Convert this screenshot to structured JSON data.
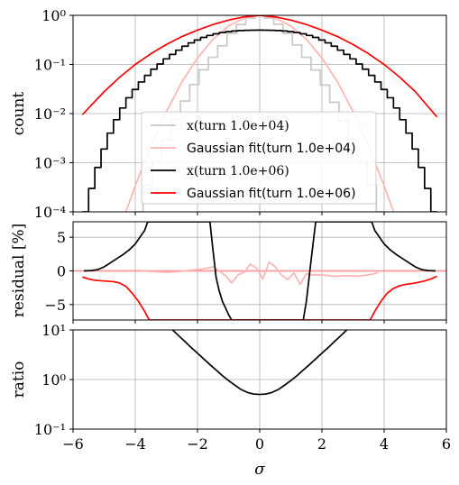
{
  "chart_data": [
    {
      "panel": "top",
      "type": "line",
      "ylabel": "count",
      "xlim": [
        -6,
        6
      ],
      "ylim": [
        0.0001,
        1
      ],
      "yscale": "log",
      "grid": true,
      "yticks": [
        {
          "value": 0.0001,
          "label": "10⁻⁴"
        },
        {
          "value": 0.001,
          "label": "10⁻³"
        },
        {
          "value": 0.01,
          "label": "10⁻²"
        },
        {
          "value": 0.1,
          "label": "10⁻¹"
        },
        {
          "value": 1,
          "label": "10⁰"
        }
      ],
      "legend": {
        "placement": "lower-center",
        "entries": [
          {
            "label": "x(turn 1.0e+04)",
            "color": "#c8c8c8"
          },
          {
            "label": "Gaussian fit(turn 1.0e+04)",
            "color": "#ffb3b3"
          },
          {
            "label": "x(turn 1.0e+06)",
            "color": "#000000"
          },
          {
            "label": "Gaussian fit(turn 1.0e+06)",
            "color": "#ff0000"
          }
        ]
      },
      "series": [
        {
          "name": "x(turn 1.0e+04)",
          "style": "step",
          "color": "#c8c8c8",
          "x": [
            -3.9,
            -3.6,
            -3.3,
            -3.0,
            -2.7,
            -2.4,
            -2.1,
            -1.8,
            -1.5,
            -1.2,
            -0.9,
            -0.6,
            -0.3,
            0.0,
            0.3,
            0.6,
            0.9,
            1.2,
            1.5,
            1.8,
            2.1,
            2.4,
            2.7,
            3.0,
            3.3,
            3.6,
            3.9
          ],
          "y": [
            0.0001,
            0.00035,
            0.0011,
            0.0029,
            0.0075,
            0.018,
            0.039,
            0.078,
            0.14,
            0.24,
            0.43,
            0.65,
            0.88,
            1.0,
            0.88,
            0.66,
            0.43,
            0.25,
            0.14,
            0.077,
            0.038,
            0.017,
            0.0072,
            0.0029,
            0.0011,
            0.00035,
            0.0001
          ]
        },
        {
          "name": "Gaussian fit(turn 1.0e+04)",
          "style": "line",
          "color": "#ffb3b3",
          "x": [
            -4.3,
            -4,
            -3.5,
            -3,
            -2.5,
            -2,
            -1.5,
            -1,
            -0.5,
            0,
            0.5,
            1,
            1.5,
            2,
            2.5,
            3,
            3.5,
            4,
            4.3
          ],
          "y": [
            0.0001,
            0.00034,
            0.0022,
            0.011,
            0.044,
            0.135,
            0.325,
            0.61,
            0.88,
            1.0,
            0.88,
            0.61,
            0.325,
            0.135,
            0.044,
            0.011,
            0.0022,
            0.00034,
            0.0001
          ]
        },
        {
          "name": "x(turn 1.0e+06)",
          "style": "step",
          "color": "#000000",
          "x": [
            -5.6,
            -5.4,
            -5.2,
            -5.0,
            -4.8,
            -4.6,
            -4.4,
            -4.2,
            -4.0,
            -3.8,
            -3.6,
            -3.4,
            -3.2,
            -3.0,
            -2.8,
            -2.6,
            -2.4,
            -2.2,
            -2.0,
            -1.8,
            -1.6,
            -1.4,
            -1.2,
            -1.0,
            -0.8,
            -0.6,
            -0.4,
            -0.2,
            0.0,
            0.2,
            0.4,
            0.6,
            0.8,
            1.0,
            1.2,
            1.4,
            1.6,
            1.8,
            2.0,
            2.2,
            2.4,
            2.6,
            2.8,
            3.0,
            3.2,
            3.4,
            3.6,
            3.8,
            4.0,
            4.2,
            4.4,
            4.6,
            4.8,
            5.0,
            5.2,
            5.4,
            5.6
          ],
          "y": [
            0.0001,
            0.0003,
            0.0008,
            0.0019,
            0.004,
            0.0075,
            0.013,
            0.021,
            0.031,
            0.044,
            0.06,
            0.08,
            0.102,
            0.13,
            0.16,
            0.195,
            0.235,
            0.275,
            0.315,
            0.355,
            0.39,
            0.42,
            0.445,
            0.465,
            0.48,
            0.49,
            0.495,
            0.498,
            0.5,
            0.498,
            0.495,
            0.49,
            0.48,
            0.465,
            0.445,
            0.42,
            0.39,
            0.355,
            0.315,
            0.275,
            0.235,
            0.195,
            0.16,
            0.13,
            0.102,
            0.08,
            0.06,
            0.044,
            0.031,
            0.021,
            0.013,
            0.0075,
            0.004,
            0.0019,
            0.0008,
            0.0003,
            0.0001
          ]
        },
        {
          "name": "Gaussian fit(turn 1.0e+06)",
          "style": "line",
          "color": "#ff0000",
          "x": [
            -5.7,
            -5,
            -4.5,
            -4,
            -3.5,
            -3,
            -2.5,
            -2,
            -1.5,
            -1,
            -0.5,
            0,
            0.5,
            1,
            1.5,
            2,
            2.5,
            3,
            3.5,
            4,
            4.5,
            5,
            5.7
          ],
          "y": [
            0.0095,
            0.028,
            0.055,
            0.1,
            0.165,
            0.255,
            0.37,
            0.5,
            0.65,
            0.8,
            0.93,
            1.0,
            0.93,
            0.8,
            0.65,
            0.5,
            0.37,
            0.255,
            0.165,
            0.1,
            0.055,
            0.028,
            0.0085
          ]
        }
      ]
    },
    {
      "panel": "middle",
      "type": "line",
      "ylabel": "residual [%]",
      "xlim": [
        -6,
        6
      ],
      "ylim": [
        -7.3,
        7.3
      ],
      "grid": true,
      "yticks": [
        {
          "value": -5,
          "label": "−5"
        },
        {
          "value": 0,
          "label": "0"
        },
        {
          "value": 5,
          "label": "5"
        }
      ],
      "series": [
        {
          "name": "Gaussian fit(turn 1.0e+04)",
          "color": "#ff9999",
          "style": "flat",
          "x": [
            -6,
            6
          ],
          "y": [
            0,
            0
          ]
        },
        {
          "name": "x(turn 1.0e+04)",
          "color": "#ffb3b3",
          "style": "line",
          "x": [
            -3.8,
            -3.4,
            -3.0,
            -2.6,
            -2.2,
            -1.8,
            -1.5,
            -1.3,
            -1.1,
            -0.9,
            -0.7,
            -0.5,
            -0.3,
            -0.1,
            0.1,
            0.3,
            0.5,
            0.7,
            0.9,
            1.1,
            1.3,
            1.5,
            1.7,
            2.0,
            2.4,
            2.8,
            3.2,
            3.6,
            3.8
          ],
          "y": [
            0.0,
            -0.1,
            -0.2,
            -0.1,
            0.1,
            0.3,
            0.6,
            0.0,
            -0.7,
            -1.8,
            -0.6,
            -0.2,
            1.0,
            0.4,
            -1.2,
            1.3,
            0.6,
            -0.6,
            -1.3,
            -0.3,
            -2.0,
            -0.4,
            -0.6,
            -0.6,
            -0.8,
            -0.7,
            -0.8,
            -0.5,
            -0.3
          ]
        },
        {
          "name": "x(turn 1.0e+06)",
          "color": "#000000",
          "style": "line",
          "x": [
            -5.65,
            -5.4,
            -5.2,
            -5.0,
            -4.8,
            -4.6,
            -4.4,
            -4.2,
            -4.0,
            -3.85,
            -3.7,
            -3.6,
            -1.6,
            -1.5,
            -1.4,
            -1.3,
            -1.2,
            -1.1,
            -1.0,
            -0.9,
            1.4,
            1.5,
            1.6,
            1.7,
            1.8,
            3.6,
            3.7,
            3.85,
            4.0,
            4.2,
            4.4,
            4.6,
            4.8,
            5.0,
            5.2,
            5.4,
            5.65
          ],
          "y": [
            0.0,
            0.05,
            0.2,
            0.6,
            1.2,
            1.8,
            2.4,
            3.1,
            4.0,
            5.0,
            6.0,
            7.3,
            7.3,
            3.0,
            -1.0,
            -3.0,
            -4.5,
            -5.5,
            -6.5,
            -7.3,
            -7.3,
            -4.5,
            -0.5,
            3.5,
            7.3,
            7.3,
            6.0,
            5.0,
            4.0,
            3.1,
            2.4,
            1.8,
            1.2,
            0.6,
            0.2,
            0.05,
            0.0
          ]
        },
        {
          "name": "Gaussian fit(turn 1.0e+06)",
          "color": "#ff0000",
          "style": "line",
          "x": [
            -5.7,
            -5.5,
            -5.3,
            -5.0,
            -4.7,
            -4.5,
            -4.3,
            -4.1,
            -3.9,
            -3.7,
            -3.55,
            3.55,
            3.7,
            3.9,
            4.1,
            4.3,
            4.5,
            4.7,
            5.0,
            5.3,
            5.5,
            5.7
          ],
          "y": [
            -0.9,
            -1.2,
            -1.4,
            -1.5,
            -1.6,
            -1.8,
            -2.3,
            -3.3,
            -4.5,
            -6.0,
            -7.3,
            -7.3,
            -6.0,
            -4.5,
            -3.3,
            -2.6,
            -2.2,
            -2.0,
            -1.8,
            -1.5,
            -1.2,
            -0.8
          ]
        }
      ]
    },
    {
      "panel": "bottom",
      "type": "line",
      "ylabel": "ratio",
      "xlabel": "σ",
      "xlim": [
        -6,
        6
      ],
      "ylim": [
        0.1,
        10
      ],
      "yscale": "log",
      "grid": true,
      "xticks": [
        {
          "value": -6,
          "label": "−6"
        },
        {
          "value": -4,
          "label": "−4"
        },
        {
          "value": -2,
          "label": "−2"
        },
        {
          "value": 0,
          "label": "0"
        },
        {
          "value": 2,
          "label": "2"
        },
        {
          "value": 4,
          "label": "4"
        },
        {
          "value": 6,
          "label": "6"
        }
      ],
      "yticks": [
        {
          "value": 0.1,
          "label": "10⁻¹"
        },
        {
          "value": 1,
          "label": "10⁰"
        },
        {
          "value": 10,
          "label": "10¹"
        }
      ],
      "series": [
        {
          "name": "ratio",
          "color": "#000000",
          "style": "line",
          "x": [
            -2.8,
            -2.6,
            -2.4,
            -2.2,
            -2.0,
            -1.8,
            -1.6,
            -1.4,
            -1.2,
            -1.0,
            -0.8,
            -0.6,
            -0.4,
            -0.2,
            0.0,
            0.2,
            0.4,
            0.6,
            0.8,
            1.0,
            1.2,
            1.4,
            1.6,
            1.8,
            2.0,
            2.2,
            2.4,
            2.6,
            2.8
          ],
          "y": [
            10.0,
            7.6,
            5.8,
            4.4,
            3.4,
            2.6,
            2.0,
            1.55,
            1.2,
            0.95,
            0.77,
            0.63,
            0.55,
            0.51,
            0.5,
            0.51,
            0.55,
            0.63,
            0.77,
            0.95,
            1.2,
            1.55,
            2.0,
            2.6,
            3.4,
            4.4,
            5.8,
            7.6,
            10.0
          ]
        }
      ]
    }
  ]
}
